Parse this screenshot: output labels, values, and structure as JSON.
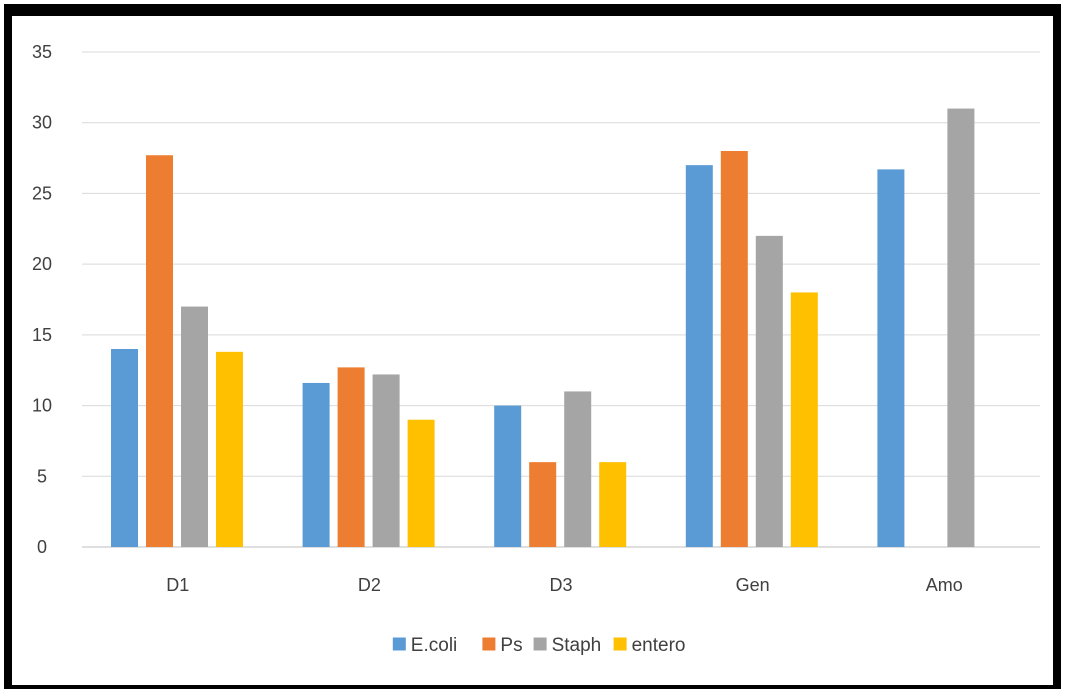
{
  "chart_data": {
    "type": "bar",
    "title": "",
    "xlabel": "",
    "ylabel": "",
    "categories": [
      "D1",
      "D2",
      "D3",
      "Gen",
      "Amo"
    ],
    "series": [
      {
        "name": "E.coli",
        "color": "#5B9BD5",
        "values": [
          14,
          11.6,
          10,
          27,
          26.7
        ]
      },
      {
        "name": "Ps",
        "color": "#ED7D31",
        "values": [
          27.7,
          12.7,
          6,
          28,
          0
        ]
      },
      {
        "name": "Staph",
        "color": "#A5A5A5",
        "values": [
          17,
          12.2,
          11,
          22,
          31
        ]
      },
      {
        "name": "entero",
        "color": "#FFC000",
        "values": [
          13.8,
          9,
          6,
          18,
          0
        ]
      }
    ],
    "ylim": [
      0,
      35
    ],
    "yticks": [
      "0",
      "5",
      "10",
      "15",
      "20",
      "25",
      "30",
      "35"
    ],
    "grid": true,
    "legend_position": "bottom"
  }
}
